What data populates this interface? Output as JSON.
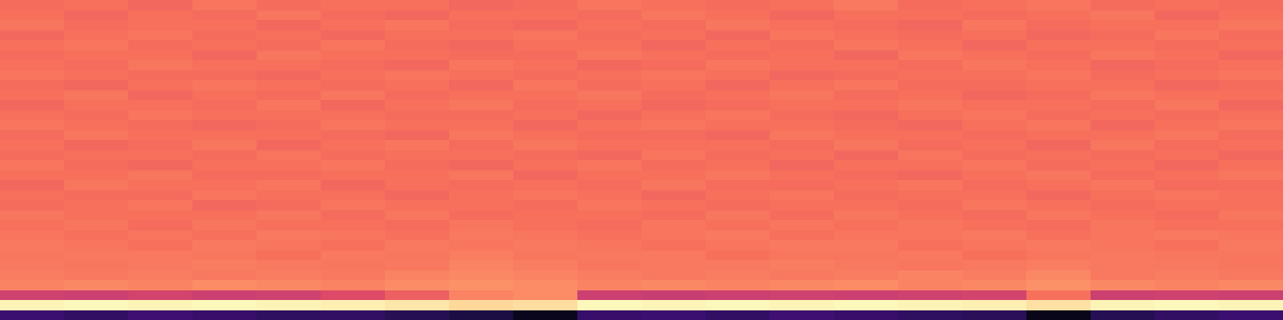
{
  "chart_data": {
    "type": "heatmap",
    "tick_labels": false,
    "zlim": [
      0,
      1
    ],
    "cells": [
      [
        0.69,
        0.7,
        0.68,
        0.71,
        0.69,
        0.7,
        0.7,
        0.68,
        0.69,
        0.71,
        0.7,
        0.69,
        0.7,
        0.72,
        0.69,
        0.7,
        0.71,
        0.69,
        0.7,
        0.69
      ],
      [
        0.7,
        0.68,
        0.7,
        0.69,
        0.71,
        0.69,
        0.68,
        0.7,
        0.7,
        0.69,
        0.71,
        0.7,
        0.68,
        0.7,
        0.7,
        0.69,
        0.7,
        0.71,
        0.68,
        0.7
      ],
      [
        0.71,
        0.69,
        0.7,
        0.7,
        0.68,
        0.7,
        0.71,
        0.69,
        0.68,
        0.7,
        0.69,
        0.71,
        0.7,
        0.69,
        0.68,
        0.71,
        0.69,
        0.7,
        0.7,
        0.71
      ],
      [
        0.68,
        0.7,
        0.71,
        0.69,
        0.7,
        0.68,
        0.7,
        0.7,
        0.71,
        0.69,
        0.7,
        0.68,
        0.71,
        0.7,
        0.69,
        0.7,
        0.68,
        0.69,
        0.71,
        0.69
      ],
      [
        0.7,
        0.71,
        0.69,
        0.7,
        0.69,
        0.71,
        0.69,
        0.68,
        0.7,
        0.7,
        0.68,
        0.7,
        0.69,
        0.71,
        0.7,
        0.68,
        0.7,
        0.7,
        0.69,
        0.7
      ],
      [
        0.69,
        0.7,
        0.7,
        0.68,
        0.71,
        0.7,
        0.7,
        0.69,
        0.69,
        0.71,
        0.7,
        0.69,
        0.7,
        0.68,
        0.71,
        0.7,
        0.69,
        0.71,
        0.7,
        0.68
      ],
      [
        0.7,
        0.69,
        0.71,
        0.7,
        0.7,
        0.69,
        0.68,
        0.71,
        0.7,
        0.68,
        0.69,
        0.71,
        0.7,
        0.7,
        0.69,
        0.71,
        0.7,
        0.68,
        0.69,
        0.7
      ],
      [
        0.71,
        0.7,
        0.69,
        0.69,
        0.68,
        0.7,
        0.71,
        0.7,
        0.69,
        0.7,
        0.71,
        0.7,
        0.68,
        0.69,
        0.7,
        0.7,
        0.71,
        0.69,
        0.7,
        0.71
      ],
      [
        0.69,
        0.68,
        0.7,
        0.71,
        0.7,
        0.69,
        0.7,
        0.68,
        0.71,
        0.69,
        0.7,
        0.68,
        0.7,
        0.71,
        0.69,
        0.69,
        0.7,
        0.7,
        0.68,
        0.69
      ],
      [
        0.7,
        0.71,
        0.68,
        0.7,
        0.69,
        0.71,
        0.69,
        0.7,
        0.7,
        0.71,
        0.69,
        0.7,
        0.71,
        0.69,
        0.7,
        0.68,
        0.69,
        0.71,
        0.7,
        0.7
      ],
      [
        0.68,
        0.7,
        0.7,
        0.69,
        0.71,
        0.68,
        0.7,
        0.71,
        0.69,
        0.7,
        0.68,
        0.69,
        0.7,
        0.7,
        0.71,
        0.7,
        0.7,
        0.69,
        0.71,
        0.68
      ],
      [
        0.7,
        0.69,
        0.71,
        0.7,
        0.7,
        0.7,
        0.69,
        0.69,
        0.7,
        0.68,
        0.7,
        0.71,
        0.69,
        0.68,
        0.7,
        0.71,
        0.69,
        0.7,
        0.69,
        0.7
      ],
      [
        0.71,
        0.7,
        0.69,
        0.68,
        0.69,
        0.71,
        0.7,
        0.7,
        0.68,
        0.7,
        0.71,
        0.7,
        0.7,
        0.69,
        0.68,
        0.7,
        0.71,
        0.68,
        0.7,
        0.71
      ],
      [
        0.69,
        0.71,
        0.7,
        0.7,
        0.7,
        0.69,
        0.68,
        0.71,
        0.7,
        0.69,
        0.69,
        0.68,
        0.71,
        0.7,
        0.7,
        0.69,
        0.7,
        0.7,
        0.71,
        0.69
      ],
      [
        0.7,
        0.68,
        0.69,
        0.71,
        0.68,
        0.7,
        0.71,
        0.69,
        0.71,
        0.7,
        0.7,
        0.7,
        0.69,
        0.71,
        0.69,
        0.7,
        0.68,
        0.71,
        0.69,
        0.7
      ],
      [
        0.69,
        0.7,
        0.7,
        0.69,
        0.71,
        0.69,
        0.7,
        0.7,
        0.69,
        0.68,
        0.71,
        0.69,
        0.7,
        0.68,
        0.71,
        0.69,
        0.7,
        0.69,
        0.7,
        0.68
      ],
      [
        0.71,
        0.69,
        0.68,
        0.7,
        0.7,
        0.71,
        0.69,
        0.68,
        0.7,
        0.71,
        0.69,
        0.7,
        0.68,
        0.7,
        0.7,
        0.71,
        0.69,
        0.7,
        0.68,
        0.7
      ],
      [
        0.7,
        0.7,
        0.71,
        0.69,
        0.69,
        0.7,
        0.7,
        0.71,
        0.68,
        0.7,
        0.7,
        0.71,
        0.7,
        0.69,
        0.68,
        0.7,
        0.71,
        0.69,
        0.7,
        0.71
      ],
      [
        0.68,
        0.71,
        0.7,
        0.7,
        0.71,
        0.68,
        0.7,
        0.69,
        0.7,
        0.69,
        0.71,
        0.69,
        0.69,
        0.7,
        0.71,
        0.69,
        0.7,
        0.71,
        0.69,
        0.69
      ],
      [
        0.7,
        0.69,
        0.69,
        0.71,
        0.7,
        0.7,
        0.68,
        0.7,
        0.71,
        0.7,
        0.68,
        0.7,
        0.71,
        0.69,
        0.7,
        0.7,
        0.68,
        0.7,
        0.71,
        0.7
      ],
      [
        0.69,
        0.7,
        0.71,
        0.68,
        0.69,
        0.71,
        0.7,
        0.7,
        0.69,
        0.71,
        0.7,
        0.69,
        0.7,
        0.7,
        0.69,
        0.71,
        0.7,
        0.69,
        0.7,
        0.7
      ],
      [
        0.71,
        0.7,
        0.7,
        0.7,
        0.71,
        0.69,
        0.71,
        0.69,
        0.7,
        0.7,
        0.69,
        0.71,
        0.69,
        0.71,
        0.7,
        0.69,
        0.71,
        0.7,
        0.69,
        0.71
      ],
      [
        0.7,
        0.71,
        0.69,
        0.71,
        0.7,
        0.7,
        0.69,
        0.71,
        0.7,
        0.69,
        0.71,
        0.7,
        0.71,
        0.7,
        0.71,
        0.7,
        0.69,
        0.71,
        0.7,
        0.7
      ],
      [
        0.71,
        0.7,
        0.71,
        0.7,
        0.72,
        0.71,
        0.7,
        0.72,
        0.71,
        0.7,
        0.71,
        0.72,
        0.7,
        0.71,
        0.71,
        0.72,
        0.7,
        0.71,
        0.72,
        0.71
      ],
      [
        0.72,
        0.71,
        0.7,
        0.72,
        0.71,
        0.7,
        0.72,
        0.71,
        0.72,
        0.71,
        0.7,
        0.71,
        0.72,
        0.72,
        0.7,
        0.71,
        0.72,
        0.71,
        0.7,
        0.72
      ],
      [
        0.71,
        0.72,
        0.72,
        0.71,
        0.7,
        0.72,
        0.71,
        0.73,
        0.71,
        0.72,
        0.72,
        0.7,
        0.71,
        0.71,
        0.72,
        0.7,
        0.71,
        0.72,
        0.71,
        0.71
      ],
      [
        0.72,
        0.71,
        0.72,
        0.73,
        0.72,
        0.71,
        0.72,
        0.74,
        0.73,
        0.71,
        0.72,
        0.72,
        0.73,
        0.72,
        0.71,
        0.72,
        0.73,
        0.72,
        0.72,
        0.71
      ],
      [
        0.73,
        0.72,
        0.73,
        0.72,
        0.73,
        0.72,
        0.74,
        0.75,
        0.74,
        0.73,
        0.72,
        0.73,
        0.72,
        0.73,
        0.74,
        0.73,
        0.75,
        0.72,
        0.73,
        0.72
      ],
      [
        0.74,
        0.75,
        0.74,
        0.76,
        0.75,
        0.74,
        0.76,
        0.77,
        0.76,
        0.74,
        0.75,
        0.74,
        0.75,
        0.76,
        0.74,
        0.75,
        0.77,
        0.75,
        0.74,
        0.75
      ],
      [
        0.56,
        0.55,
        0.57,
        0.55,
        0.56,
        0.6,
        0.66,
        0.74,
        0.76,
        0.55,
        0.54,
        0.55,
        0.56,
        0.55,
        0.56,
        0.57,
        0.7,
        0.55,
        0.56,
        0.55
      ],
      [
        0.98,
        0.99,
        0.98,
        0.99,
        0.98,
        0.97,
        0.95,
        0.92,
        0.93,
        0.99,
        0.98,
        0.99,
        0.98,
        0.99,
        0.98,
        0.97,
        0.94,
        0.98,
        0.99,
        0.98
      ],
      [
        0.2,
        0.18,
        0.21,
        0.19,
        0.17,
        0.18,
        0.15,
        0.12,
        0.05,
        0.19,
        0.2,
        0.18,
        0.21,
        0.19,
        0.17,
        0.16,
        0.04,
        0.15,
        0.18,
        0.2
      ]
    ]
  }
}
